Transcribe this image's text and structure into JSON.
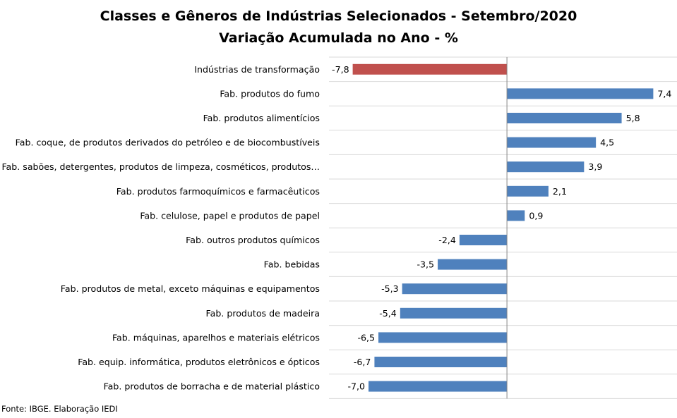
{
  "chart_data": {
    "type": "bar",
    "orientation": "horizontal",
    "title": "Classes e Gêneros de Indústrias Selecionados - Setembro/2020",
    "subtitle": "Variação Acumulada no Ano - %",
    "categories": [
      "Indústrias de transformação",
      "Fab. produtos do fumo",
      "Fab. produtos alimentícios",
      "Fab. coque, de produtos derivados do petróleo e de biocombustíveis",
      "Fab. sabões, detergentes, produtos de limpeza, cosméticos, produtos…",
      "Fab. produtos farmoquímicos e farmacêuticos",
      "Fab. celulose, papel e produtos de papel",
      "Fab. outros produtos químicos",
      "Fab. bebidas",
      "Fab. produtos de metal, exceto máquinas e equipamentos",
      "Fab. produtos de madeira",
      "Fab. máquinas, aparelhos e materiais elétricos",
      "Fab. equip. informática, produtos eletrônicos e ópticos",
      "Fab. produtos de borracha e de material plástico"
    ],
    "values": [
      -7.8,
      7.4,
      5.8,
      4.5,
      3.9,
      2.1,
      0.9,
      -2.4,
      -3.5,
      -5.3,
      -5.4,
      -6.5,
      -6.7,
      -7.0
    ],
    "value_labels": [
      "-7,8",
      "7,4",
      "5,8",
      "4,5",
      "3,9",
      "2,1",
      "0,9",
      "-2,4",
      "-3,5",
      "-5,3",
      "-5,4",
      "-6,5",
      "-6,7",
      "-7,0"
    ],
    "xlim": [
      -9,
      8.6
    ],
    "grid": "horizontal",
    "legend": "none",
    "colors": {
      "highlight": "#c0504d",
      "default": "#4f81bd",
      "gridline": "#d9d9d9",
      "axis": "#868686"
    },
    "highlight_index": 0
  },
  "source": "Fonte: IBGE. Elaboração IEDI"
}
